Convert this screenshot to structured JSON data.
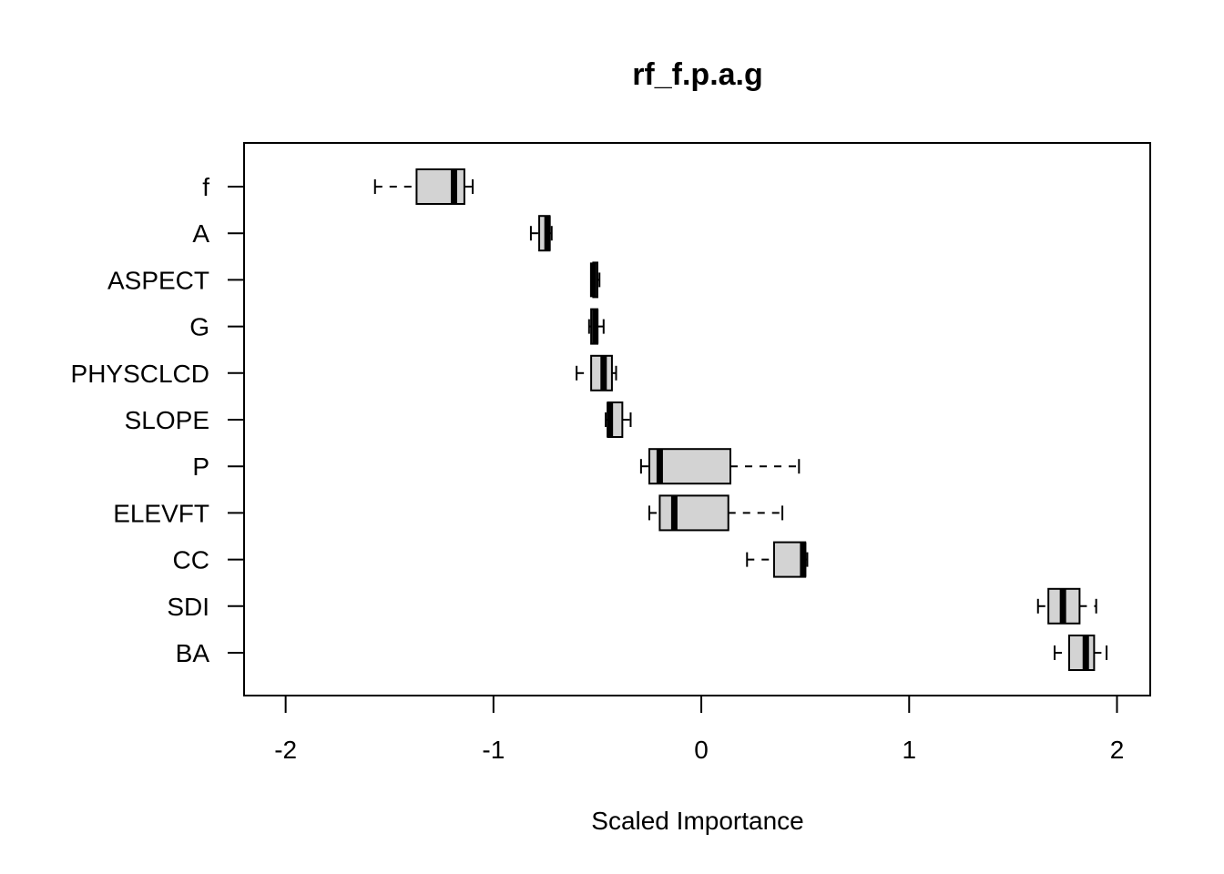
{
  "chart_data": {
    "type": "boxplot",
    "orientation": "horizontal",
    "title": "rf_f.p.a.g",
    "xlabel": "Scaled Importance",
    "ylabel": "",
    "xlim": [
      -2.2,
      2.16
    ],
    "xticks": [
      -2,
      -1,
      0,
      1,
      2
    ],
    "grid": false,
    "box_fill": "#d3d3d3",
    "categories": [
      "f",
      "A",
      "ASPECT",
      "G",
      "PHYSCLCD",
      "SLOPE",
      "P",
      "ELEVFT",
      "CC",
      "SDI",
      "BA"
    ],
    "boxes": [
      {
        "label": "f",
        "min": -1.57,
        "q1": -1.37,
        "median": -1.19,
        "q3": -1.14,
        "max": -1.1
      },
      {
        "label": "A",
        "min": -0.82,
        "q1": -0.78,
        "median": -0.74,
        "q3": -0.73,
        "max": -0.72
      },
      {
        "label": "ASPECT",
        "min": -0.52,
        "q1": -0.52,
        "median": -0.52,
        "q3": -0.5,
        "max": -0.49
      },
      {
        "label": "G",
        "min": -0.54,
        "q1": -0.53,
        "median": -0.51,
        "q3": -0.5,
        "max": -0.47
      },
      {
        "label": "PHYSCLCD",
        "min": -0.6,
        "q1": -0.53,
        "median": -0.47,
        "q3": -0.43,
        "max": -0.41
      },
      {
        "label": "SLOPE",
        "min": -0.46,
        "q1": -0.45,
        "median": -0.44,
        "q3": -0.38,
        "max": -0.34
      },
      {
        "label": "P",
        "min": -0.29,
        "q1": -0.25,
        "median": -0.2,
        "q3": 0.14,
        "max": 0.47
      },
      {
        "label": "ELEVFT",
        "min": -0.25,
        "q1": -0.2,
        "median": -0.13,
        "q3": 0.13,
        "max": 0.39
      },
      {
        "label": "CC",
        "min": 0.22,
        "q1": 0.35,
        "median": 0.49,
        "q3": 0.5,
        "max": 0.51
      },
      {
        "label": "SDI",
        "min": 1.62,
        "q1": 1.67,
        "median": 1.74,
        "q3": 1.82,
        "max": 1.9
      },
      {
        "label": "BA",
        "min": 1.7,
        "q1": 1.77,
        "median": 1.85,
        "q3": 1.89,
        "max": 1.95
      }
    ]
  }
}
